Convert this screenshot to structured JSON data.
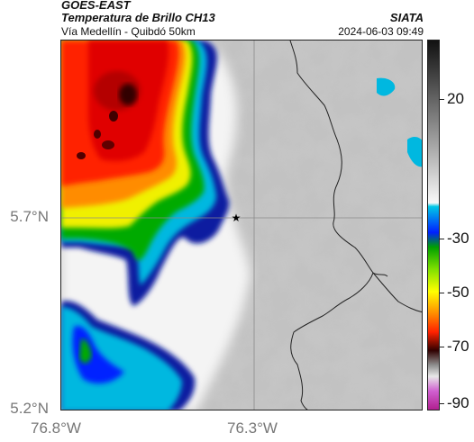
{
  "header": {
    "satellite": "GOES-EAST",
    "product": "Temperatura de Brillo CH13",
    "route": "Vía Medellín - Quibdó 50km",
    "agency": "SIATA",
    "datetime": "2024-06-03 09:49"
  },
  "axes": {
    "lat_labels": [
      "5.7°N",
      "5.2°N"
    ],
    "lon_labels": [
      "76.8°W",
      "76.3°W"
    ]
  },
  "colorbar": {
    "tick_labels": [
      "20",
      "-30",
      "-50",
      "-70",
      "-90"
    ],
    "colors": [
      "#111111",
      "#ffffff",
      "#00c8e6",
      "#00a000",
      "#ffff00",
      "#ff2200",
      "#200000",
      "#b02090"
    ]
  },
  "marker": {
    "symbol": "★",
    "name": "star-marker"
  },
  "chart_data": {
    "type": "heatmap",
    "variable": "Temperatura de Brillo CH13",
    "lat_ticks": [
      5.7,
      5.2
    ],
    "lon_ticks": [
      -76.8,
      -76.3
    ],
    "colorbar_ticks": [
      20,
      -30,
      -50,
      -70,
      -90
    ]
  }
}
